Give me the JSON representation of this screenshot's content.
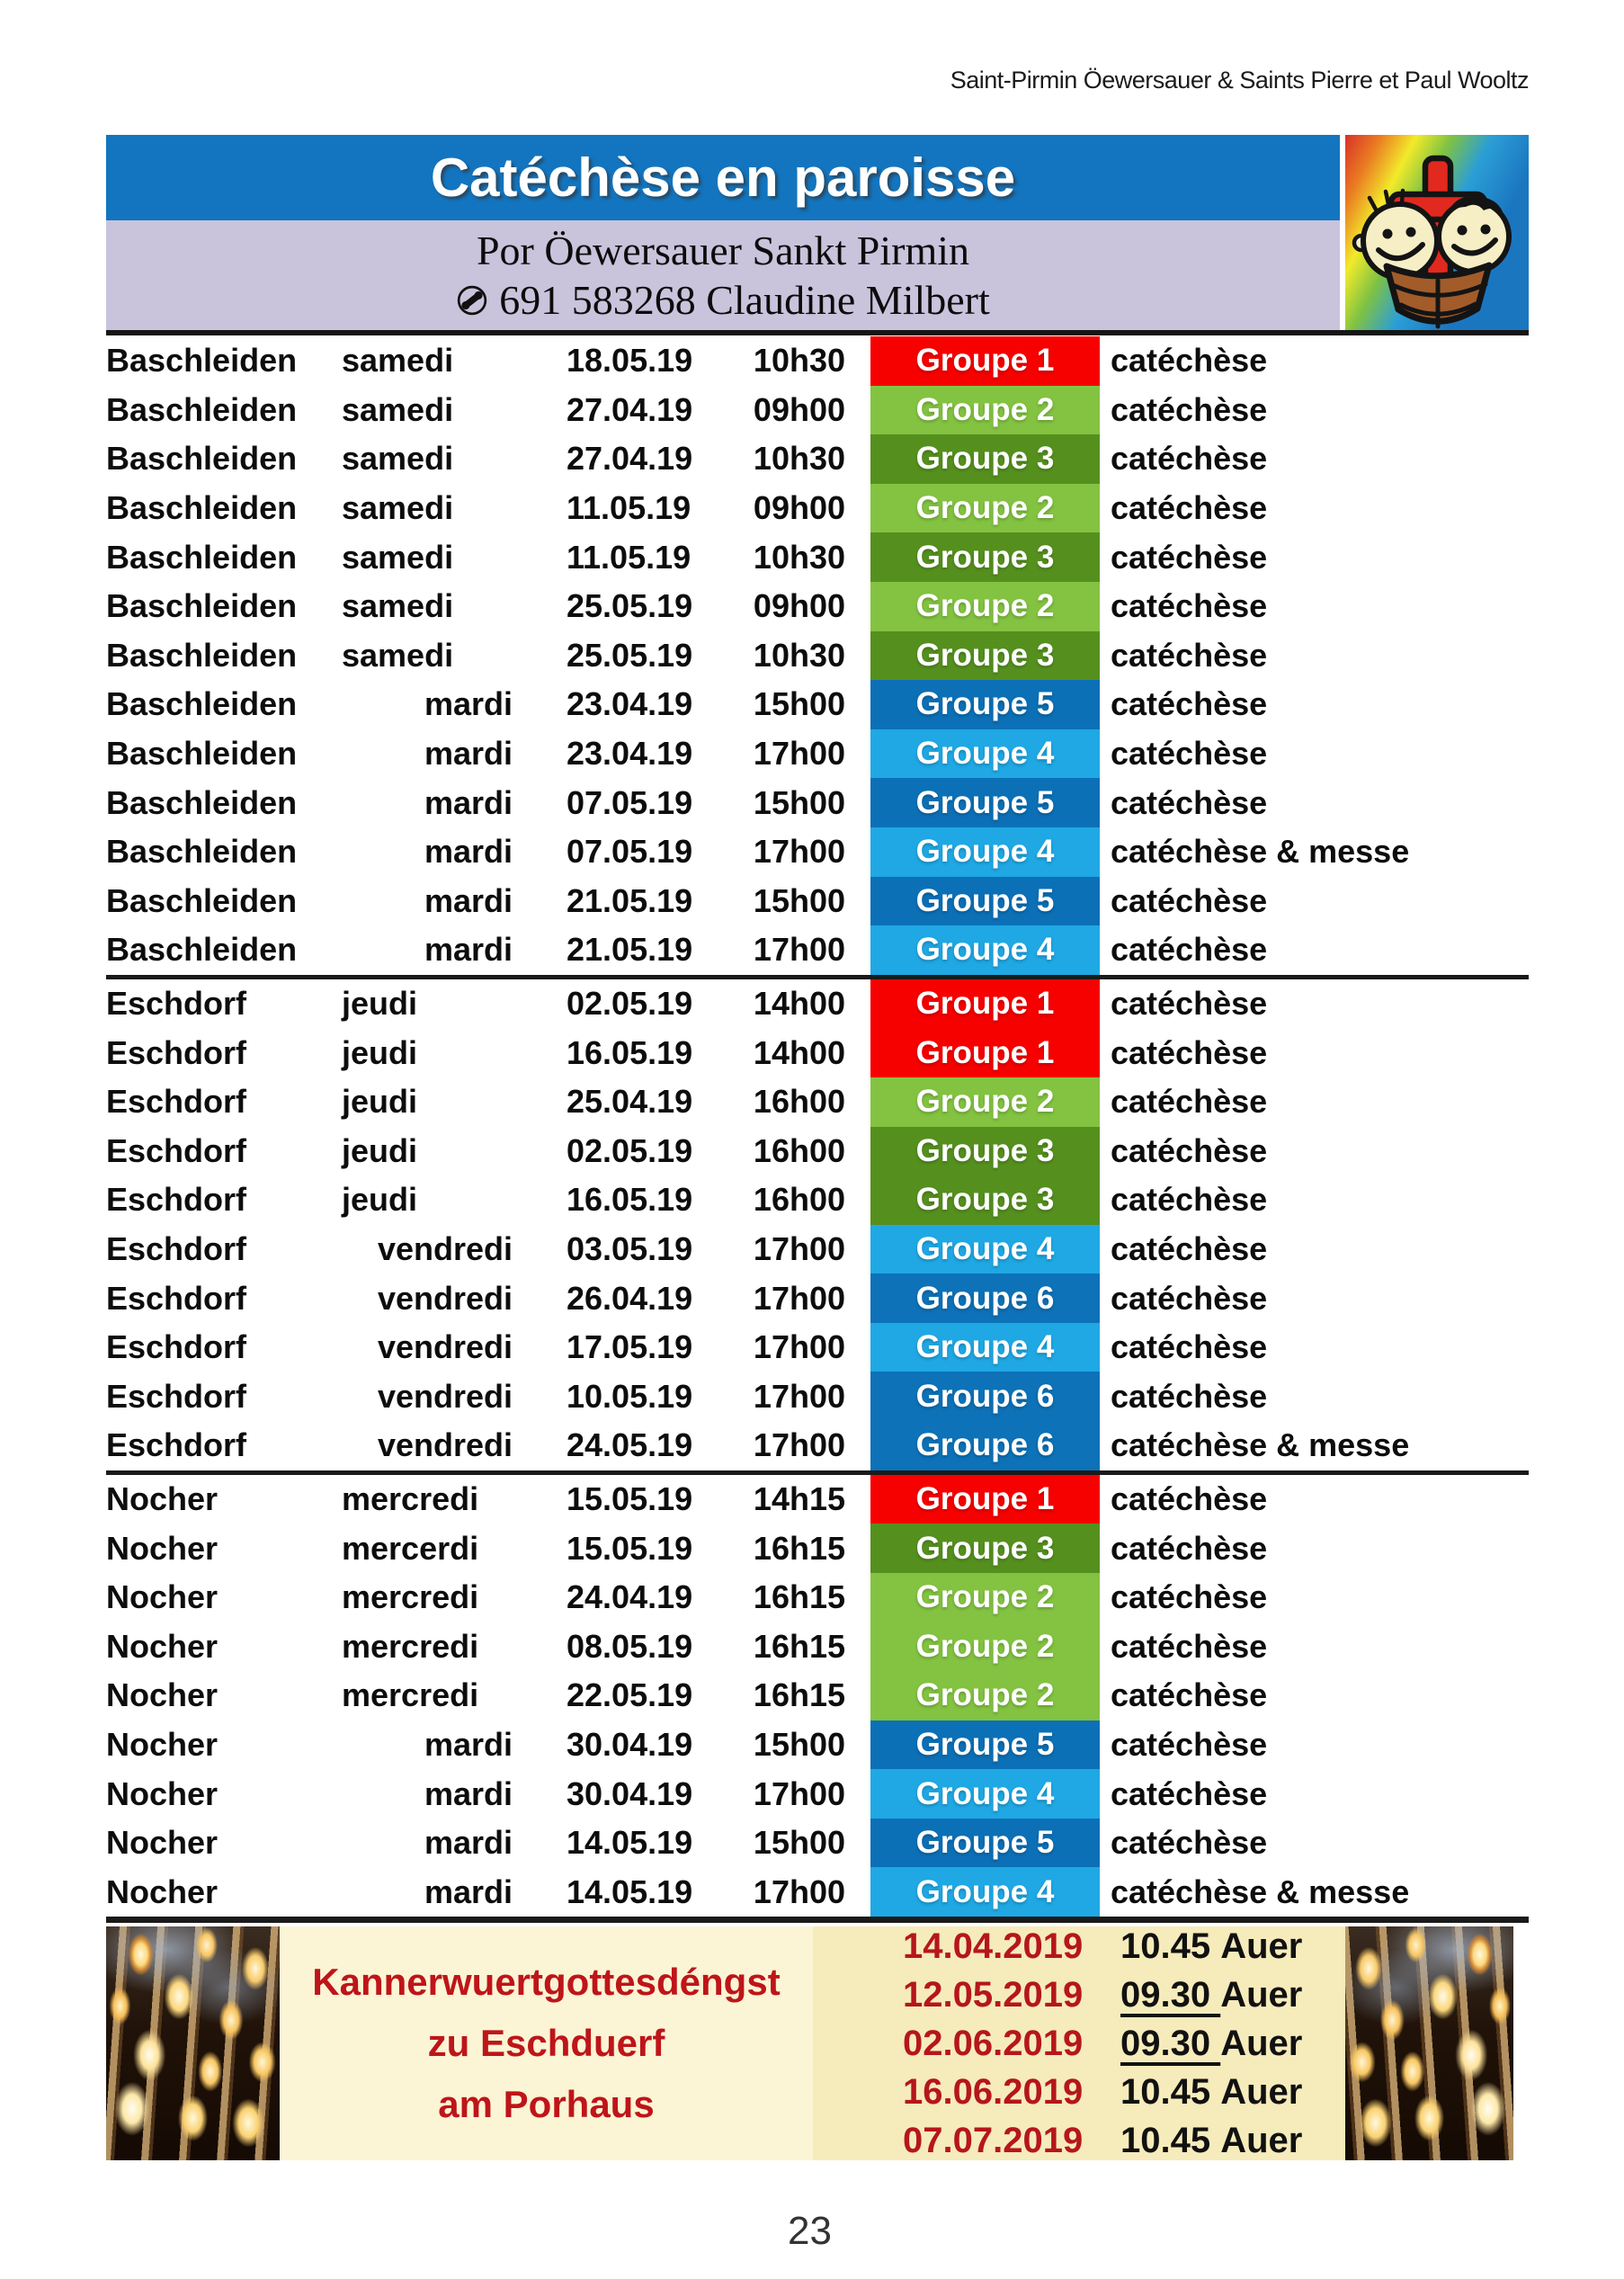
{
  "colors": {
    "bar_blue": "#1375BF",
    "band_lavender": "#C9C3DC",
    "banner_left_bg": "#FBF4D5",
    "banner_right_bg": "#F6EBBB",
    "banner_heading_red": "#BE1519",
    "banner_date_red": "#B5161C"
  },
  "header": {
    "corner_text": "Saint-Pirmin Öewersauer & Saints Pierre et Paul Wooltz",
    "title": "Catéchèse en paroisse",
    "subtitle_line1": "Por Öewersauer Sankt Pirmin",
    "phone_icon": "phone-in-circle",
    "subtitle_line2": "691 583268 Claudine Milbert",
    "logo_icon": "kids-ark-rainbow-logo"
  },
  "schedule": {
    "group_colors": {
      "Groupe 1": "#F60000",
      "Groupe 2": "#83C341",
      "Groupe 3": "#55901E",
      "Groupe 4": "#1FA8E4",
      "Groupe 5": "#0C70B7",
      "Groupe 6": "#0D72B8"
    },
    "sections": [
      {
        "rows": [
          {
            "location": "Baschleiden",
            "day": "samedi",
            "date": "18.05.19",
            "time": "10h30",
            "group": "Groupe 1",
            "activity": "catéchèse"
          },
          {
            "location": "Baschleiden",
            "day": "samedi",
            "date": "27.04.19",
            "time": "09h00",
            "group": "Groupe 2",
            "activity": "catéchèse"
          },
          {
            "location": "Baschleiden",
            "day": "samedi",
            "date": "27.04.19",
            "time": "10h30",
            "group": "Groupe 3",
            "activity": "catéchèse"
          },
          {
            "location": "Baschleiden",
            "day": "samedi",
            "date": "11.05.19",
            "time": "09h00",
            "group": "Groupe 2",
            "activity": "catéchèse"
          },
          {
            "location": "Baschleiden",
            "day": "samedi",
            "date": "11.05.19",
            "time": "10h30",
            "group": "Groupe 3",
            "activity": "catéchèse"
          },
          {
            "location": "Baschleiden",
            "day": "samedi",
            "date": "25.05.19",
            "time": "09h00",
            "group": "Groupe 2",
            "activity": "catéchèse"
          },
          {
            "location": "Baschleiden",
            "day": "samedi",
            "date": "25.05.19",
            "time": "10h30",
            "group": "Groupe 3",
            "activity": "catéchèse"
          },
          {
            "location": "Baschleiden",
            "day": "mardi",
            "date": "23.04.19",
            "time": "15h00",
            "group": "Groupe 5",
            "activity": "catéchèse"
          },
          {
            "location": "Baschleiden",
            "day": "mardi",
            "date": "23.04.19",
            "time": "17h00",
            "group": "Groupe 4",
            "activity": "catéchèse"
          },
          {
            "location": "Baschleiden",
            "day": "mardi",
            "date": "07.05.19",
            "time": "15h00",
            "group": "Groupe 5",
            "activity": "catéchèse"
          },
          {
            "location": "Baschleiden",
            "day": "mardi",
            "date": "07.05.19",
            "time": "17h00",
            "group": "Groupe 4",
            "activity": "catéchèse & messe"
          },
          {
            "location": "Baschleiden",
            "day": "mardi",
            "date": "21.05.19",
            "time": "15h00",
            "group": "Groupe 5",
            "activity": "catéchèse"
          },
          {
            "location": "Baschleiden",
            "day": "mardi",
            "date": "21.05.19",
            "time": "17h00",
            "group": "Groupe 4",
            "activity": "catéchèse"
          }
        ]
      },
      {
        "rows": [
          {
            "location": "Eschdorf",
            "day": "jeudi",
            "date": "02.05.19",
            "time": "14h00",
            "group": "Groupe 1",
            "activity": "catéchèse"
          },
          {
            "location": "Eschdorf",
            "day": "jeudi",
            "date": "16.05.19",
            "time": "14h00",
            "group": "Groupe 1",
            "activity": "catéchèse"
          },
          {
            "location": "Eschdorf",
            "day": "jeudi",
            "date": "25.04.19",
            "time": "16h00",
            "group": "Groupe 2",
            "activity": "catéchèse"
          },
          {
            "location": "Eschdorf",
            "day": "jeudi",
            "date": "02.05.19",
            "time": "16h00",
            "group": "Groupe 3",
            "activity": "catéchèse"
          },
          {
            "location": "Eschdorf",
            "day": "jeudi",
            "date": "16.05.19",
            "time": "16h00",
            "group": "Groupe 3",
            "activity": "catéchèse"
          },
          {
            "location": "Eschdorf",
            "day": "vendredi",
            "date": "03.05.19",
            "time": "17h00",
            "group": "Groupe 4",
            "activity": "catéchèse"
          },
          {
            "location": "Eschdorf",
            "day": "vendredi",
            "date": "26.04.19",
            "time": "17h00",
            "group": "Groupe 6",
            "activity": "catéchèse"
          },
          {
            "location": "Eschdorf",
            "day": "vendredi",
            "date": "17.05.19",
            "time": "17h00",
            "group": "Groupe 4",
            "activity": "catéchèse"
          },
          {
            "location": "Eschdorf",
            "day": "vendredi",
            "date": "10.05.19",
            "time": "17h00",
            "group": "Groupe 6",
            "activity": "catéchèse"
          },
          {
            "location": "Eschdorf",
            "day": "vendredi",
            "date": "24.05.19",
            "time": "17h00",
            "group": "Groupe 6",
            "activity": "catéchèse & messe"
          }
        ]
      },
      {
        "rows": [
          {
            "location": "Nocher",
            "day": "mercredi",
            "date": "15.05.19",
            "time": "14h15",
            "group": "Groupe 1",
            "activity": "catéchèse"
          },
          {
            "location": "Nocher",
            "day": "mercerdi",
            "date": "15.05.19",
            "time": "16h15",
            "group": "Groupe 3",
            "activity": "catéchèse"
          },
          {
            "location": "Nocher",
            "day": "mercredi",
            "date": "24.04.19",
            "time": "16h15",
            "group": "Groupe 2",
            "activity": "catéchèse"
          },
          {
            "location": "Nocher",
            "day": "mercredi",
            "date": "08.05.19",
            "time": "16h15",
            "group": "Groupe 2",
            "activity": "catéchèse"
          },
          {
            "location": "Nocher",
            "day": "mercredi",
            "date": "22.05.19",
            "time": "16h15",
            "group": "Groupe 2",
            "activity": "catéchèse"
          },
          {
            "location": "Nocher",
            "day": "mardi",
            "date": "30.04.19",
            "time": "15h00",
            "group": "Groupe 5",
            "activity": "catéchèse"
          },
          {
            "location": "Nocher",
            "day": "mardi",
            "date": "30.04.19",
            "time": "17h00",
            "group": "Groupe 4",
            "activity": "catéchèse"
          },
          {
            "location": "Nocher",
            "day": "mardi",
            "date": "14.05.19",
            "time": "15h00",
            "group": "Groupe 5",
            "activity": "catéchèse"
          },
          {
            "location": "Nocher",
            "day": "mardi",
            "date": "14.05.19",
            "time": "17h00",
            "group": "Groupe 4",
            "activity": "catéchèse & messe"
          }
        ]
      }
    ]
  },
  "banner": {
    "title_lines": [
      "Kannerwuertgottesdéngst",
      "zu Eschduerf",
      "am Porhaus"
    ],
    "candle_photo_icon": "candles-photo",
    "dates": [
      {
        "date": "14.04.2019",
        "time": "10.45",
        "suffix": "Auer",
        "underline": false
      },
      {
        "date": "12.05.2019",
        "time": "09.30",
        "suffix": "Auer",
        "underline": true
      },
      {
        "date": "02.06.2019",
        "time": "09.30",
        "suffix": "Auer",
        "underline": true
      },
      {
        "date": "16.06.2019",
        "time": "10.45",
        "suffix": "Auer",
        "underline": false
      },
      {
        "date": "07.07.2019",
        "time": "10.45",
        "suffix": "Auer",
        "underline": false
      }
    ]
  },
  "page": {
    "number": "23"
  }
}
